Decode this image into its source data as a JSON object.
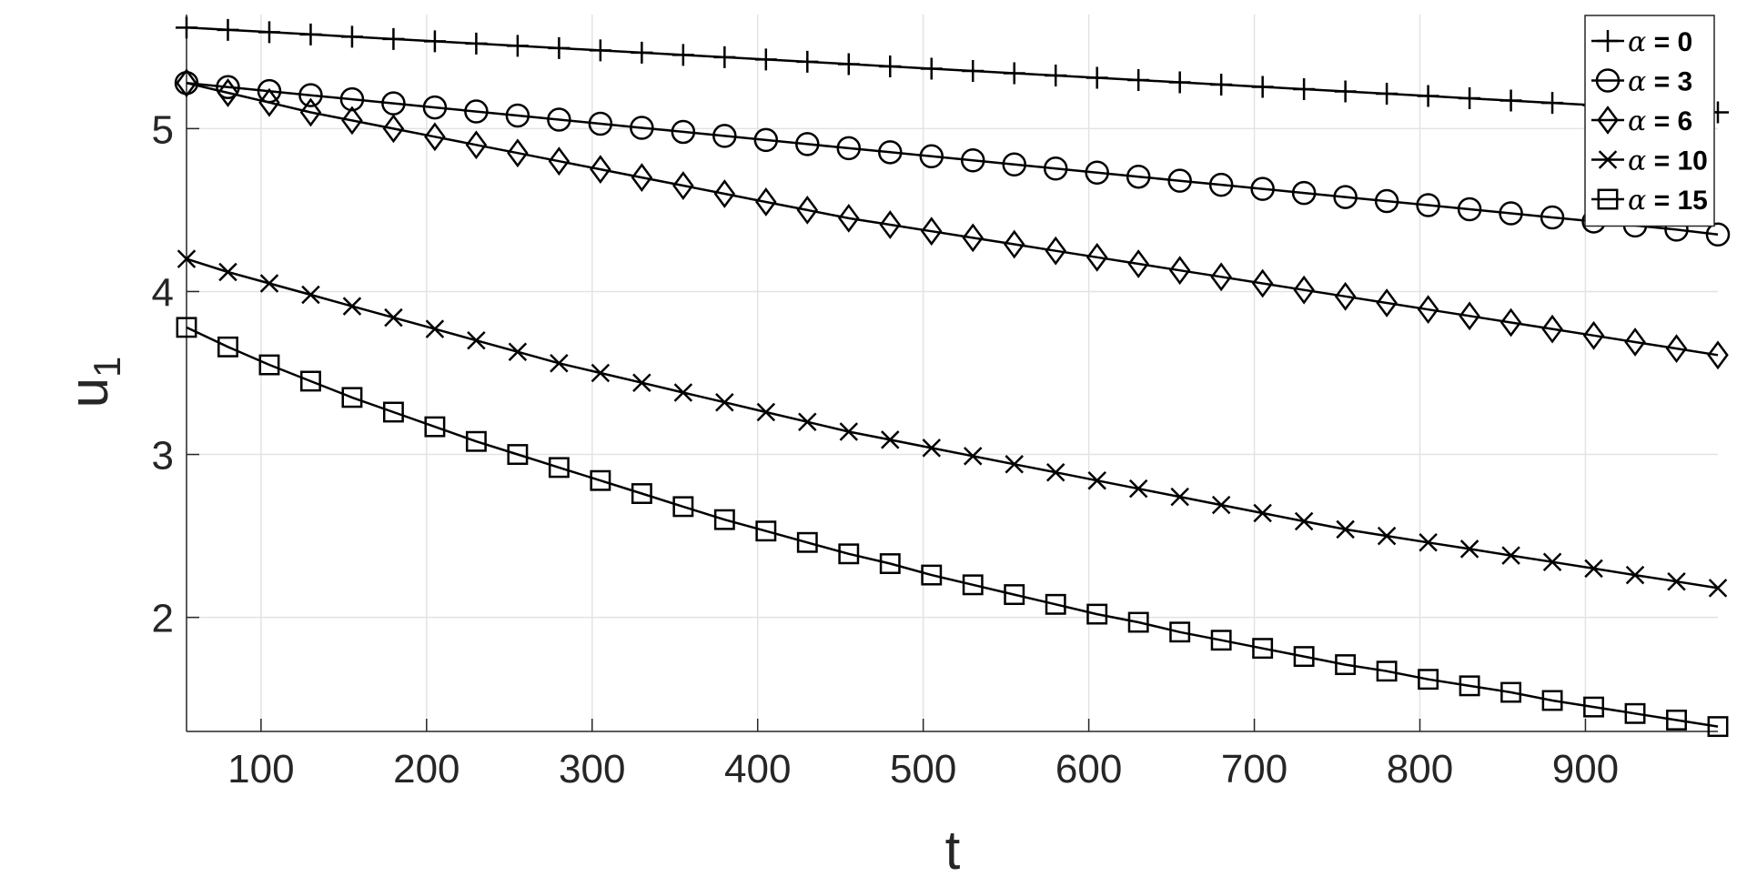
{
  "chart_data": {
    "type": "line",
    "title": "",
    "xlabel": "t",
    "ylabel": "u",
    "ylabel_subscript": "1",
    "xlim": [
      55,
      980
    ],
    "ylim": [
      1.3,
      5.7
    ],
    "xticks": [
      100,
      200,
      300,
      400,
      500,
      600,
      700,
      800,
      900
    ],
    "yticks": [
      2,
      3,
      4,
      5
    ],
    "grid": true,
    "legend_position": "top-right",
    "line_color": "#000000",
    "x": [
      55,
      80,
      105,
      130,
      155,
      180,
      205,
      230,
      255,
      280,
      305,
      330,
      355,
      380,
      405,
      430,
      455,
      480,
      505,
      530,
      555,
      580,
      605,
      630,
      655,
      680,
      705,
      730,
      755,
      780,
      805,
      830,
      855,
      880,
      905,
      930,
      955,
      980
    ],
    "series": [
      {
        "name": "α = 0",
        "symbol": "α",
        "label": " = 0",
        "marker": "plus",
        "values": [
          5.62,
          5.606,
          5.592,
          5.578,
          5.564,
          5.55,
          5.536,
          5.522,
          5.508,
          5.494,
          5.48,
          5.466,
          5.452,
          5.438,
          5.424,
          5.41,
          5.396,
          5.382,
          5.368,
          5.354,
          5.34,
          5.326,
          5.312,
          5.298,
          5.284,
          5.27,
          5.256,
          5.242,
          5.228,
          5.214,
          5.2,
          5.186,
          5.172,
          5.158,
          5.144,
          5.13,
          5.116,
          5.1
        ]
      },
      {
        "name": "α = 3",
        "symbol": "α",
        "label": " = 3",
        "marker": "circle",
        "values": [
          5.28,
          5.255,
          5.23,
          5.205,
          5.18,
          5.155,
          5.13,
          5.105,
          5.08,
          5.055,
          5.03,
          5.005,
          4.98,
          4.955,
          4.93,
          4.905,
          4.88,
          4.855,
          4.83,
          4.805,
          4.78,
          4.755,
          4.73,
          4.705,
          4.68,
          4.655,
          4.63,
          4.605,
          4.58,
          4.555,
          4.53,
          4.505,
          4.48,
          4.455,
          4.43,
          4.405,
          4.38,
          4.35
        ]
      },
      {
        "name": "α = 6",
        "symbol": "α",
        "label": " = 6",
        "marker": "diamond",
        "values": [
          5.28,
          5.22,
          5.16,
          5.1,
          5.05,
          5.0,
          4.95,
          4.9,
          4.85,
          4.8,
          4.75,
          4.7,
          4.65,
          4.6,
          4.55,
          4.5,
          4.45,
          4.41,
          4.37,
          4.33,
          4.29,
          4.25,
          4.21,
          4.17,
          4.13,
          4.09,
          4.05,
          4.01,
          3.97,
          3.93,
          3.89,
          3.85,
          3.81,
          3.77,
          3.73,
          3.69,
          3.65,
          3.61
        ]
      },
      {
        "name": "α = 10",
        "symbol": "α",
        "label": " = 10",
        "marker": "cross",
        "values": [
          4.2,
          4.12,
          4.05,
          3.98,
          3.91,
          3.84,
          3.77,
          3.7,
          3.63,
          3.56,
          3.5,
          3.44,
          3.38,
          3.32,
          3.26,
          3.2,
          3.14,
          3.09,
          3.04,
          2.99,
          2.94,
          2.89,
          2.84,
          2.79,
          2.74,
          2.69,
          2.64,
          2.59,
          2.54,
          2.5,
          2.46,
          2.42,
          2.38,
          2.34,
          2.3,
          2.26,
          2.22,
          2.18
        ]
      },
      {
        "name": "α = 15",
        "symbol": "α",
        "label": " = 15",
        "marker": "square",
        "values": [
          3.78,
          3.66,
          3.55,
          3.45,
          3.35,
          3.26,
          3.17,
          3.08,
          3.0,
          2.92,
          2.84,
          2.76,
          2.68,
          2.6,
          2.53,
          2.46,
          2.39,
          2.33,
          2.26,
          2.2,
          2.14,
          2.08,
          2.02,
          1.97,
          1.91,
          1.86,
          1.81,
          1.76,
          1.71,
          1.67,
          1.62,
          1.58,
          1.54,
          1.49,
          1.45,
          1.41,
          1.37,
          1.33
        ]
      }
    ]
  }
}
